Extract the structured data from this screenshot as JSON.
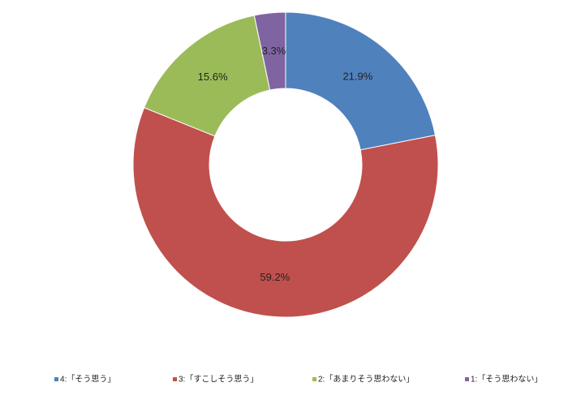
{
  "chart_data": {
    "type": "donut",
    "categories": [
      "4:「そう思う」",
      "3:「すこしそう思う」",
      "2:「あまりそう思わない」",
      "1:「そう思わない」"
    ],
    "values": [
      21.9,
      59.2,
      15.6,
      3.3
    ],
    "value_labels": [
      "21.9%",
      "59.2%",
      "15.6%",
      "3.3%"
    ],
    "colors": [
      "#4f81bd",
      "#c0504d",
      "#9bbb59",
      "#8064a2"
    ],
    "legend": "bottom"
  }
}
